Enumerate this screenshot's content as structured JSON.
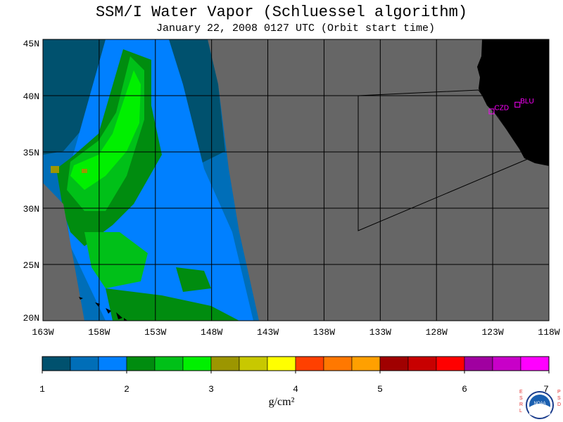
{
  "title": "SSM/I Water Vapor (Schluessel algorithm)",
  "subtitle": "January 22, 2008  0127 UTC  (Orbit start time)",
  "map": {
    "lon_range": [
      -163,
      -118
    ],
    "lat_range": [
      20,
      45
    ],
    "lat_ticks": [
      {
        "value": 45,
        "label": "45N"
      },
      {
        "value": 40,
        "label": "40N"
      },
      {
        "value": 35,
        "label": "35N"
      },
      {
        "value": 30,
        "label": "30N"
      },
      {
        "value": 25,
        "label": "25N"
      },
      {
        "value": 20,
        "label": "20N"
      }
    ],
    "lon_ticks": [
      {
        "value": -163,
        "label": "163W"
      },
      {
        "value": -158,
        "label": "158W"
      },
      {
        "value": -153,
        "label": "153W"
      },
      {
        "value": -148,
        "label": "148W"
      },
      {
        "value": -143,
        "label": "143W"
      },
      {
        "value": -138,
        "label": "138W"
      },
      {
        "value": -133,
        "label": "133W"
      },
      {
        "value": -128,
        "label": "128W"
      },
      {
        "value": -123,
        "label": "123W"
      },
      {
        "value": -118,
        "label": "118W"
      }
    ],
    "stations": [
      {
        "label": "CZD",
        "lon": -123.1,
        "lat": 38.6
      },
      {
        "label": "BLU",
        "lon": -120.8,
        "lat": 39.2
      }
    ],
    "colors": {
      "no_data": "#666666",
      "land": "#000000",
      "grid": "#000000",
      "station": "#ff00ff"
    }
  },
  "colorbar": {
    "tick_labels": [
      "1",
      "2",
      "3",
      "4",
      "5",
      "6",
      "7"
    ],
    "colors": [
      "#00516e",
      "#006eb8",
      "#0080ff",
      "#008c0f",
      "#00c018",
      "#00f000",
      "#9c9600",
      "#c8c800",
      "#ffff00",
      "#ff4000",
      "#ff7800",
      "#ffa000",
      "#a00000",
      "#c80000",
      "#ff0000",
      "#a000a0",
      "#c800c8",
      "#ff00ff"
    ],
    "units": "g/cm²"
  },
  "logo": {
    "left_text": "ESRL",
    "right_text": "PSD",
    "center_text": "NOAA"
  }
}
